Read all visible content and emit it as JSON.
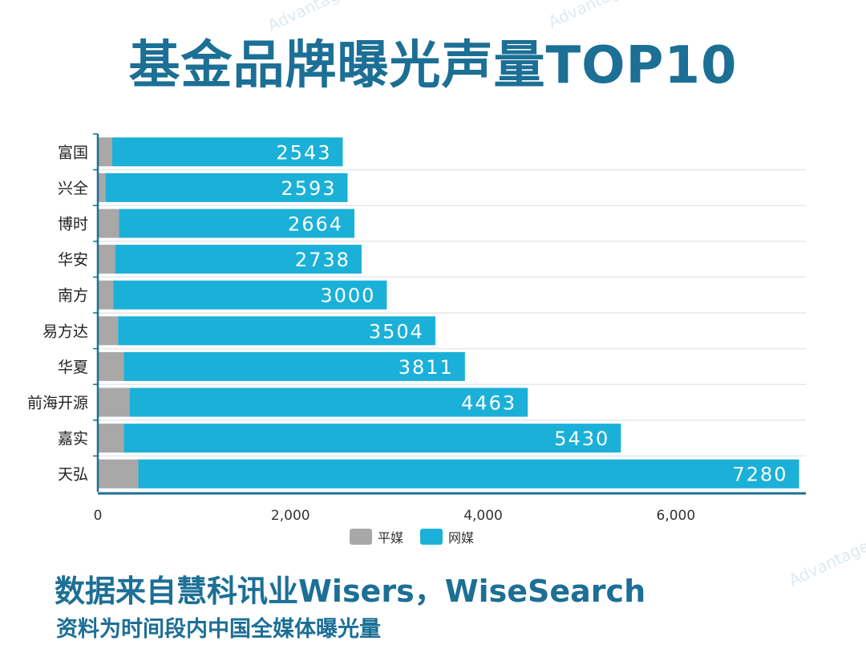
{
  "title": "基金品牌曝光声量TOP10",
  "footer": {
    "source": "数据来自慧科讯业Wisers，WiseSearch",
    "note": "资料为时间段内中国全媒体曝光量"
  },
  "chart_data": {
    "type": "bar",
    "orientation": "horizontal",
    "stacked": true,
    "title": "基金品牌曝光声量TOP10",
    "categories": [
      "富国",
      "兴全",
      "博时",
      "华安",
      "南方",
      "易方达",
      "华夏",
      "前海开源",
      "嘉实",
      "天弘"
    ],
    "series": [
      {
        "name": "平媒",
        "color": "#a8a8a8",
        "values": [
          150,
          80,
          220,
          180,
          160,
          210,
          270,
          330,
          270,
          420
        ]
      },
      {
        "name": "网媒",
        "color": "#1bb0d8",
        "values": [
          2393,
          2513,
          2444,
          2558,
          2840,
          3294,
          3541,
          4133,
          5160,
          6860
        ]
      }
    ],
    "totals": [
      "2543",
      "2593",
      "2664",
      "2738",
      "3000",
      "3504",
      "3811",
      "4463",
      "5430",
      "7280"
    ],
    "xticks": [
      0,
      2000,
      4000,
      6000
    ],
    "xtick_labels": [
      "0",
      "2,000",
      "4,000",
      "6,000"
    ],
    "xlim": [
      0,
      7350
    ],
    "legend": "bottom-center",
    "xlabel": "",
    "ylabel": ""
  }
}
